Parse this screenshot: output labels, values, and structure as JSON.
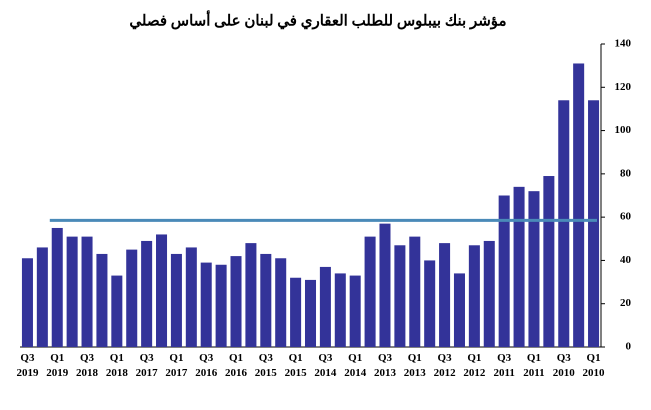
{
  "chart_data": {
    "type": "bar",
    "title": "مؤشر بنك بيبلوس للطلب العقاري في لبنان على أساس فصلي",
    "categories": [
      "Q3 2019",
      null,
      "Q1 2019",
      null,
      "Q3 2018",
      null,
      "Q1 2018",
      null,
      "Q3 2017",
      null,
      "Q1 2017",
      null,
      "Q3 2016",
      null,
      "Q1 2016",
      null,
      "Q3 2015",
      null,
      "Q1 2015",
      null,
      "Q3 2014",
      null,
      "Q1 2014",
      null,
      "Q3 2013",
      null,
      "Q1 2013",
      null,
      "Q3 2012",
      null,
      "Q1 2012",
      null,
      "Q3 2011",
      null,
      "Q1 2011",
      null,
      "Q3 2010",
      null,
      "Q1 2010"
    ],
    "values": [
      41,
      46,
      55,
      51,
      51,
      43,
      33,
      45,
      49,
      52,
      43,
      46,
      39,
      38,
      42,
      48,
      43,
      41,
      32,
      31,
      37,
      34,
      33,
      51,
      57,
      47,
      51,
      40,
      48,
      34,
      47,
      49,
      70,
      74,
      72,
      79,
      114,
      131,
      114
    ],
    "color": "#333399",
    "hline": {
      "value": 58.5,
      "color": "#4a8ab8"
    },
    "ylim": [
      0,
      140
    ],
    "yticks": [
      0,
      20,
      40,
      60,
      80,
      100,
      120,
      140
    ],
    "y_axis_side": "right",
    "grid": false
  }
}
